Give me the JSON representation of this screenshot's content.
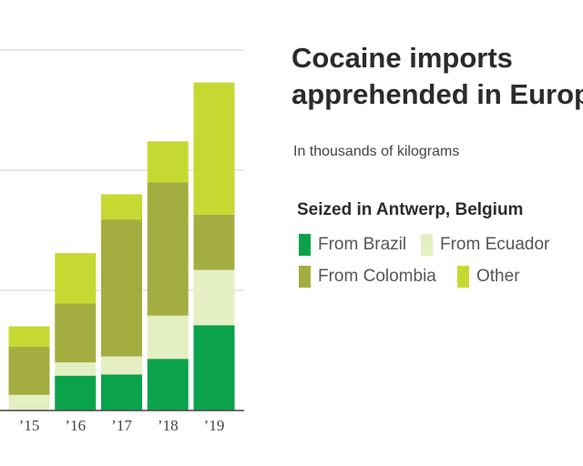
{
  "title_lines": [
    "Cocaine imports",
    "apprehended in Europ"
  ],
  "subtitle": "In thousands of kilograms",
  "legend": {
    "title": "Seized in Antwerp, Belgium",
    "items": [
      {
        "label": "From Brazil",
        "color": "#0aa24b"
      },
      {
        "label": "From Ecuador",
        "color": "#e4efc2"
      },
      {
        "label": "From Colombia",
        "color": "#a4ad3f"
      },
      {
        "label": "Other",
        "color": "#c6d932"
      }
    ]
  },
  "chart_data": {
    "type": "bar",
    "stacked": true,
    "categories": [
      "’15",
      "’16",
      "’17",
      "’18",
      "’19"
    ],
    "ylim": [
      0,
      27.5
    ],
    "gridlines": [
      10,
      20,
      30
    ],
    "series": [
      {
        "name": "From Brazil",
        "color": "#0aa24b",
        "values": [
          0,
          2.9,
          3.0,
          4.3,
          7.1
        ]
      },
      {
        "name": "From Ecuador",
        "color": "#e4efc2",
        "values": [
          1.3,
          1.1,
          1.5,
          3.6,
          4.6
        ]
      },
      {
        "name": "From Colombia",
        "color": "#a4ad3f",
        "values": [
          4.0,
          4.9,
          11.4,
          11.1,
          4.6
        ]
      },
      {
        "name": "Other",
        "color": "#c6d932",
        "values": [
          1.7,
          4.2,
          2.1,
          3.4,
          11.0
        ]
      }
    ]
  }
}
